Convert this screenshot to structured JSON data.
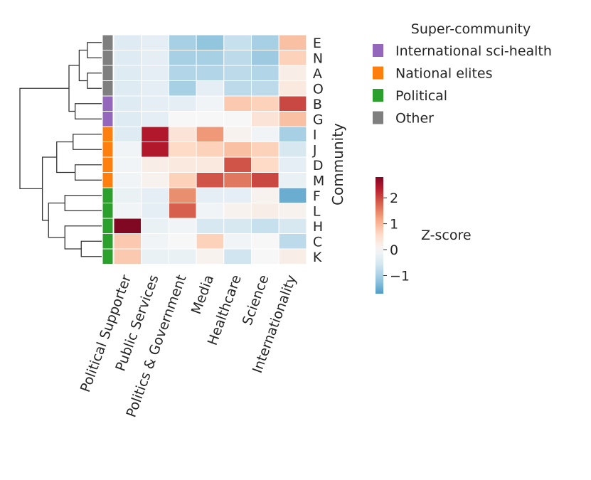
{
  "chart_data": {
    "type": "heatmap",
    "title": "",
    "xlabel": "",
    "ylabel": "Community",
    "columns": [
      "Political Supporter",
      "Public Services",
      "Politics & Government",
      "Media",
      "Healthcare",
      "Science",
      "Internationality"
    ],
    "rows": [
      "E",
      "N",
      "A",
      "O",
      "B",
      "G",
      "I",
      "J",
      "D",
      "M",
      "F",
      "L",
      "H",
      "C",
      "K"
    ],
    "values": [
      [
        -0.4,
        -0.3,
        -1.0,
        -1.2,
        -0.7,
        -1.0,
        0.9
      ],
      [
        -0.4,
        -0.3,
        -1.0,
        -1.0,
        -0.8,
        -1.1,
        0.7
      ],
      [
        -0.4,
        -0.3,
        -0.9,
        -0.9,
        -0.8,
        -0.9,
        0.2
      ],
      [
        -0.4,
        -0.3,
        -1.0,
        -0.3,
        -0.8,
        -0.8,
        0.3
      ],
      [
        -0.4,
        -0.3,
        -0.3,
        -0.1,
        0.8,
        0.7,
        2.0
      ],
      [
        -0.4,
        -0.3,
        0.0,
        0.0,
        0.0,
        0.4,
        0.9
      ],
      [
        -0.4,
        2.4,
        0.4,
        1.3,
        0.1,
        -0.1,
        -1.0
      ],
      [
        -0.1,
        2.4,
        0.6,
        0.7,
        0.9,
        0.7,
        -0.5
      ],
      [
        -0.1,
        0.2,
        0.3,
        0.3,
        1.9,
        0.6,
        -0.3
      ],
      [
        -0.1,
        0.1,
        0.7,
        1.9,
        1.6,
        2.0,
        -0.2
      ],
      [
        -0.2,
        -0.3,
        1.4,
        -0.3,
        -0.3,
        0.1,
        -1.5
      ],
      [
        -0.1,
        -0.3,
        1.8,
        -0.1,
        0.1,
        0.2,
        0.1
      ],
      [
        2.8,
        -0.2,
        -0.1,
        -0.5,
        -0.5,
        -0.7,
        -0.5
      ],
      [
        0.8,
        -0.1,
        0.0,
        0.7,
        -0.1,
        0.0,
        -0.8
      ],
      [
        0.8,
        -0.2,
        -0.2,
        0.1,
        -0.6,
        0.0,
        0.2
      ]
    ],
    "super_community_by_row": [
      "Other",
      "Other",
      "Other",
      "Other",
      "International sci-health",
      "International sci-health",
      "National elites",
      "National elites",
      "National elites",
      "National elites",
      "Political",
      "Political",
      "Political",
      "Political",
      "Political"
    ],
    "legend": {
      "title": "Super-community",
      "position": "top-right",
      "entries": [
        {
          "label": "International sci-health",
          "color": "#9467bd"
        },
        {
          "label": "National elites",
          "color": "#ff7f0e"
        },
        {
          "label": "Political",
          "color": "#2ca02c"
        },
        {
          "label": "Other",
          "color": "#7f7f7f"
        }
      ]
    },
    "colorbar": {
      "label": "Z-score",
      "range": [
        -1.7,
        2.8
      ],
      "ticks": [
        2,
        1,
        0,
        -1
      ],
      "tick_labels": [
        "2",
        "1",
        "0",
        "−1"
      ],
      "colormap": "RdBu_r"
    },
    "dendrogram": {
      "position": "left",
      "links": [
        {
          "a": "E",
          "b": "N",
          "height": 0.7
        },
        {
          "a": "A",
          "b": "O",
          "height": 0.7
        },
        {
          "a": "EN",
          "b": "AO",
          "height": 1.1
        },
        {
          "a": "B",
          "b": "G",
          "height": 1.3
        },
        {
          "a": "ENAO",
          "b": "BG",
          "height": 1.6
        },
        {
          "a": "I",
          "b": "J",
          "height": 1.4
        },
        {
          "a": "D",
          "b": "M",
          "height": 1.3
        },
        {
          "a": "IJ",
          "b": "DM",
          "height": 2.2
        },
        {
          "a": "F",
          "b": "L",
          "height": 1.8
        },
        {
          "a": "C",
          "b": "K",
          "height": 1.0
        },
        {
          "a": "H",
          "b": "CK",
          "height": 1.8
        },
        {
          "a": "FL",
          "b": "HCK",
          "height": 2.6
        },
        {
          "a": "IJDM",
          "b": "FLHCK",
          "height": 2.9
        },
        {
          "a": "ENAOBG",
          "b": "IJDMFLHCK",
          "height": 4.0
        }
      ]
    }
  }
}
